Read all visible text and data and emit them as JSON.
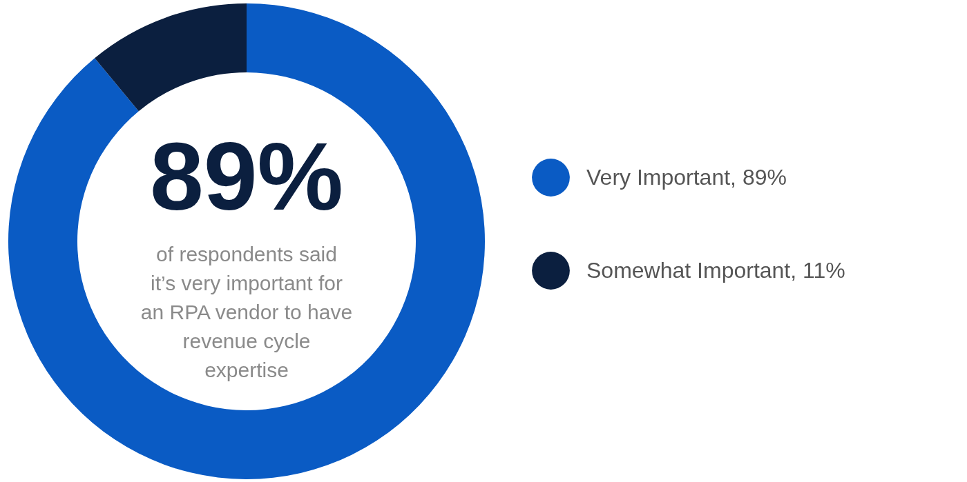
{
  "chart_data": {
    "type": "donut",
    "categories": [
      "Very Important, 89%",
      "Somewhat Important, 11%"
    ],
    "values": [
      89,
      11
    ],
    "colors": [
      "#0a5bc4",
      "#0b1f3f"
    ],
    "legend": "right",
    "annotations": [
      "89%",
      "of respondents said\nit’s very important for\nan RPA vendor to have\nrevenue cycle\nexpertise"
    ]
  }
}
